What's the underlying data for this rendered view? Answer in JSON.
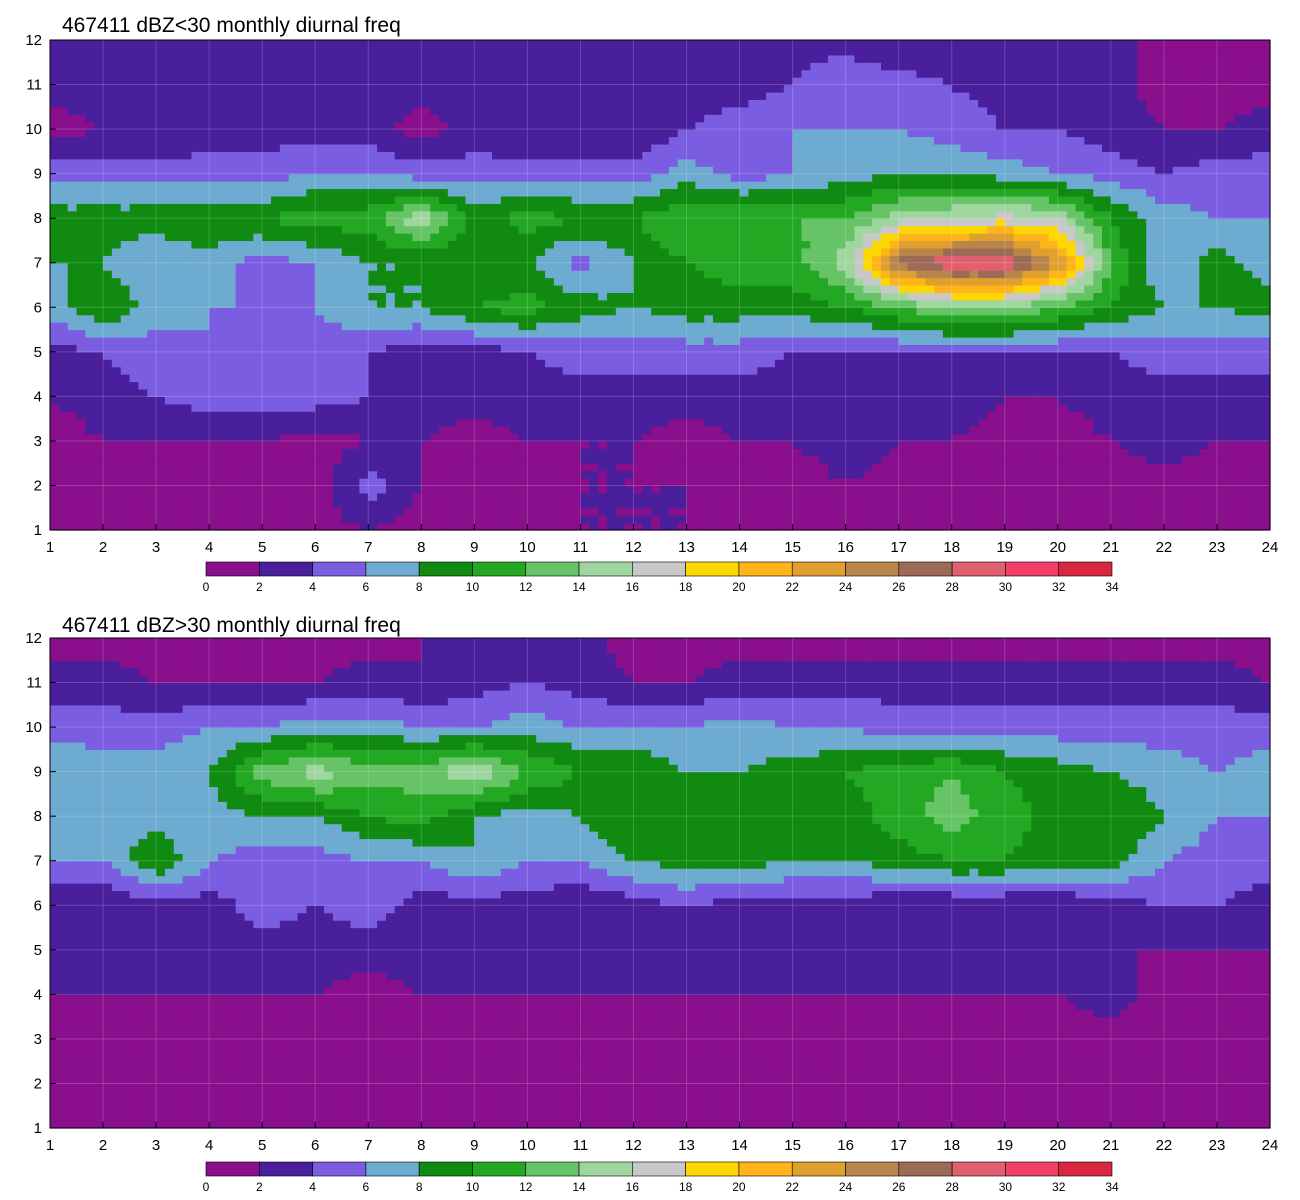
{
  "chart_data": [
    {
      "type": "heatmap",
      "title": "467411 dBZ<30 monthly diurnal freq",
      "xlabel": "",
      "ylabel": "",
      "xlim": [
        1,
        24
      ],
      "ylim": [
        1,
        12
      ],
      "x_ticks": [
        1,
        2,
        3,
        4,
        5,
        6,
        7,
        8,
        9,
        10,
        11,
        12,
        13,
        14,
        15,
        16,
        17,
        18,
        19,
        20,
        21,
        22,
        23,
        24
      ],
      "y_ticks": [
        1,
        2,
        3,
        4,
        5,
        6,
        7,
        8,
        9,
        10,
        11,
        12
      ],
      "grid": true,
      "contour_levels": [
        0,
        2,
        4,
        6,
        8,
        10,
        12,
        14,
        16,
        18,
        20,
        22,
        24,
        26,
        28,
        30,
        32,
        34
      ],
      "colorbar_colors": [
        "#8a0f8c",
        "#491f9c",
        "#7b5de1",
        "#6dabd0",
        "#108a10",
        "#24a824",
        "#66c466",
        "#9fd69f",
        "#c8c8c8",
        "#ffd700",
        "#ffb41c",
        "#e0a030",
        "#b8864a",
        "#9b6b55",
        "#e06070",
        "#f04068",
        "#d82840"
      ],
      "values": [
        [
          1,
          1,
          1,
          1,
          2,
          1,
          2,
          1,
          1,
          1,
          2,
          2,
          2,
          1,
          1,
          1,
          1,
          1,
          1,
          1,
          1,
          2,
          2,
          2
        ],
        [
          1,
          1,
          1,
          1,
          1,
          1,
          5,
          2,
          1,
          1,
          2,
          2,
          2,
          2,
          1,
          2,
          1,
          1,
          1,
          1,
          1,
          1,
          1,
          1
        ],
        [
          1,
          2,
          2,
          2,
          2,
          1,
          2,
          2,
          1,
          2,
          2,
          2,
          1,
          2,
          2,
          3,
          2,
          2,
          1,
          1,
          2,
          3,
          2,
          2
        ],
        [
          2,
          3,
          4,
          5,
          5,
          5,
          4,
          3,
          3,
          3,
          3,
          3,
          3,
          3,
          3,
          3,
          3,
          3,
          2,
          2,
          3,
          3,
          3,
          3
        ],
        [
          3,
          4,
          5,
          6,
          5,
          5,
          4,
          3,
          3,
          4,
          5,
          5,
          5,
          5,
          4,
          4,
          4,
          4,
          4,
          4,
          4,
          5,
          5,
          5
        ],
        [
          7,
          10,
          7,
          6,
          6,
          6,
          8,
          8,
          10,
          11,
          9,
          8,
          9,
          9,
          9,
          10,
          12,
          14,
          14,
          12,
          10,
          8,
          8,
          9
        ],
        [
          8,
          8,
          6,
          7,
          5,
          6,
          8,
          8,
          8,
          8,
          5,
          8,
          10,
          11,
          11,
          15,
          27,
          30,
          30,
          24,
          12,
          6,
          9,
          7
        ],
        [
          9,
          9,
          9,
          10,
          10,
          11,
          11,
          16,
          9,
          11,
          10,
          10,
          12,
          12,
          12,
          12,
          15,
          16,
          17,
          16,
          10,
          7,
          6,
          6
        ],
        [
          5,
          5,
          5,
          5,
          5,
          6,
          6,
          5,
          5,
          5,
          5,
          5,
          7,
          5,
          6,
          7,
          8,
          8,
          7,
          6,
          5,
          4,
          5,
          5
        ],
        [
          1,
          2,
          2,
          3,
          3,
          3,
          3,
          1,
          3,
          2,
          2,
          2,
          4,
          5,
          6,
          6,
          6,
          5,
          4,
          4,
          3,
          2,
          2,
          3
        ],
        [
          3,
          3,
          3,
          3,
          3,
          2,
          3,
          3,
          3,
          3,
          3,
          3,
          3,
          3,
          4,
          6,
          5,
          4,
          3,
          3,
          3,
          1,
          1,
          1
        ],
        [
          2,
          2,
          3,
          3,
          3,
          3,
          3,
          3,
          3,
          3,
          3,
          3,
          3,
          3,
          3,
          3,
          2,
          2,
          3,
          3,
          3,
          1,
          1,
          1
        ]
      ]
    },
    {
      "type": "heatmap",
      "title": "467411 dBZ>30 monthly diurnal freq",
      "xlabel": "",
      "ylabel": "",
      "xlim": [
        1,
        24
      ],
      "ylim": [
        1,
        12
      ],
      "x_ticks": [
        1,
        2,
        3,
        4,
        5,
        6,
        7,
        8,
        9,
        10,
        11,
        12,
        13,
        14,
        15,
        16,
        17,
        18,
        19,
        20,
        21,
        22,
        23,
        24
      ],
      "y_ticks": [
        1,
        2,
        3,
        4,
        5,
        6,
        7,
        8,
        9,
        10,
        11,
        12
      ],
      "grid": true,
      "contour_levels": [
        0,
        2,
        4,
        6,
        8,
        10,
        12,
        14,
        16,
        18,
        20,
        22,
        24,
        26,
        28,
        30,
        32,
        34
      ],
      "colorbar_colors": [
        "#8a0f8c",
        "#491f9c",
        "#7b5de1",
        "#6dabd0",
        "#108a10",
        "#24a824",
        "#66c466",
        "#9fd69f",
        "#c8c8c8",
        "#ffd700",
        "#ffb41c",
        "#e0a030",
        "#b8864a",
        "#9b6b55",
        "#e06070",
        "#f04068",
        "#d82840"
      ],
      "values": [
        [
          1,
          1,
          1,
          1,
          1,
          1,
          1,
          1,
          1,
          1,
          1,
          1,
          1,
          1,
          1,
          1,
          1,
          1,
          1,
          1,
          1,
          1,
          1,
          1
        ],
        [
          1,
          1,
          1,
          1,
          1,
          1,
          1,
          1,
          1,
          1,
          1,
          1,
          1,
          1,
          1,
          1,
          1,
          1,
          1,
          1,
          1,
          1,
          1,
          1
        ],
        [
          1,
          1,
          1,
          1,
          1,
          1,
          1,
          1,
          1,
          1,
          1,
          1,
          1,
          1,
          1,
          1,
          1,
          1,
          1,
          1,
          1,
          1,
          1,
          1
        ],
        [
          2,
          2,
          2,
          2,
          2,
          2,
          1,
          2,
          2,
          2,
          2,
          2,
          2,
          2,
          2,
          2,
          2,
          2,
          2,
          2,
          3,
          1,
          1,
          1
        ],
        [
          3,
          2,
          3,
          3,
          3,
          3,
          3,
          3,
          3,
          3,
          3,
          3,
          3,
          3,
          3,
          3,
          3,
          3,
          3,
          3,
          2,
          2,
          2,
          2
        ],
        [
          2,
          2,
          3,
          3,
          5,
          4,
          5,
          3,
          3,
          3,
          2,
          3,
          4,
          3,
          3,
          3,
          2,
          2,
          2,
          2,
          3,
          4,
          4,
          3
        ],
        [
          6,
          6,
          10,
          6,
          5,
          5,
          6,
          6,
          8,
          6,
          6,
          8,
          9,
          9,
          8,
          8,
          9,
          10,
          10,
          9,
          9,
          6,
          5,
          5
        ],
        [
          7,
          7,
          7,
          7,
          8,
          8,
          10,
          11,
          8,
          7,
          8,
          10,
          10,
          10,
          8,
          9,
          11,
          13,
          11,
          9,
          10,
          8,
          6,
          6
        ],
        [
          8,
          7,
          7,
          8,
          13,
          15,
          13,
          13,
          16,
          12,
          10,
          10,
          8,
          8,
          9,
          10,
          11,
          12,
          10,
          9,
          8,
          7,
          6,
          7
        ],
        [
          5,
          5,
          5,
          6,
          6,
          7,
          7,
          6,
          6,
          7,
          6,
          6,
          6,
          7,
          6,
          6,
          5,
          5,
          5,
          5,
          5,
          5,
          5,
          5
        ],
        [
          3,
          3,
          2,
          2,
          2,
          2,
          3,
          2,
          3,
          4,
          3,
          2,
          2,
          3,
          3,
          3,
          3,
          3,
          3,
          3,
          3,
          3,
          3,
          2
        ],
        [
          1,
          1,
          1,
          1,
          1,
          1,
          1,
          2,
          3,
          2,
          3,
          1,
          1,
          1,
          1,
          1,
          1,
          1,
          1,
          1,
          1,
          1,
          1,
          1
        ]
      ]
    }
  ]
}
